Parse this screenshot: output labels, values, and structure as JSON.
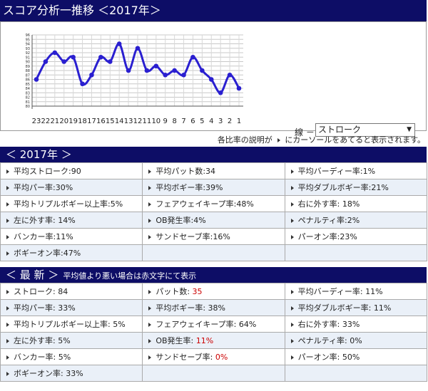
{
  "header": {
    "title": "スコア分析一推移 ＜2017年＞"
  },
  "chart_data": {
    "type": "line",
    "x": [
      "23",
      "22",
      "21",
      "20",
      "19",
      "18",
      "17",
      "16",
      "15",
      "14",
      "13",
      "12",
      "11",
      "10",
      "9",
      "8",
      "7",
      "6",
      "5",
      "4",
      "3",
      "2",
      "1"
    ],
    "values": [
      86,
      90,
      92,
      90,
      91,
      85,
      87,
      91,
      90,
      94,
      88,
      93,
      88,
      89,
      87,
      88,
      87,
      91,
      88,
      86,
      83,
      87,
      84
    ],
    "ylim": [
      80,
      96
    ],
    "y_ticks": [
      "96",
      "95",
      "94",
      "93",
      "92",
      "91",
      "90",
      "89",
      "88",
      "87",
      "86",
      "85",
      "84",
      "83",
      "82",
      "81",
      "80"
    ],
    "color": "#2a1fd0",
    "grid": true
  },
  "controls": {
    "line_label": "線 －",
    "line_select_value": "ストローク"
  },
  "note": {
    "before": "各比率の説明が",
    "after": "にカーソールをあてると表示されます。"
  },
  "section_2017": {
    "title": "＜ 2017年 ＞",
    "rows": [
      [
        {
          "text": "平均ストローク:90"
        },
        {
          "text": "平均パット数:34"
        },
        {
          "text": "平均バーディー率:1%"
        }
      ],
      [
        {
          "text": "平均パー率:30%"
        },
        {
          "text": "平均ボギー率:39%"
        },
        {
          "text": "平均ダブルボギー率:21%"
        }
      ],
      [
        {
          "text": "平均トリプルボギー以上率:5%"
        },
        {
          "text": "フェアウェイキープ率:48%"
        },
        {
          "text": "右に外す率: 18%"
        }
      ],
      [
        {
          "text": "左に外す率: 14%"
        },
        {
          "text": "OB発生率:4%"
        },
        {
          "text": "ペナルティ率:2%"
        }
      ],
      [
        {
          "text": "バンカー率:11%"
        },
        {
          "text": "サンドセーブ率:16%"
        },
        {
          "text": "パーオン率:23%"
        }
      ],
      [
        {
          "text": "ボギーオン率:47%"
        },
        {
          "text": ""
        },
        {
          "text": ""
        }
      ]
    ]
  },
  "section_latest": {
    "title": "＜ 最 新 ＞",
    "subtitle": "平均値より悪い場合は赤文字にて表示",
    "rows": [
      [
        {
          "label": "ストローク:",
          "value": "84",
          "red": false
        },
        {
          "label": "パット数:",
          "value": "35",
          "red": true
        },
        {
          "label": "平均バーディー率:",
          "value": "11%",
          "red": false
        }
      ],
      [
        {
          "label": "平均パー率:",
          "value": "33%",
          "red": false
        },
        {
          "label": "平均ボギー率:",
          "value": "38%",
          "red": false
        },
        {
          "label": "平均ダブルボギー率:",
          "value": "11%",
          "red": false
        }
      ],
      [
        {
          "label": "平均トリプルボギー以上率:",
          "value": "5%",
          "red": false
        },
        {
          "label": "フェアウェイキープ率:",
          "value": "64%",
          "red": false
        },
        {
          "label": "右に外す率:",
          "value": "33%",
          "red": false
        }
      ],
      [
        {
          "label": "左に外す率:",
          "value": "5%",
          "red": false
        },
        {
          "label": "OB発生率:",
          "value": "11%",
          "red": true
        },
        {
          "label": "ペナルティ率:",
          "value": "0%",
          "red": false
        }
      ],
      [
        {
          "label": "バンカー率:",
          "value": "5%",
          "red": false
        },
        {
          "label": "サンドセーブ率:",
          "value": "0%",
          "red": true
        },
        {
          "label": "パーオン率:",
          "value": "50%",
          "red": false
        }
      ],
      [
        {
          "label": "ボギーオン率:",
          "value": "33%",
          "red": false
        },
        {
          "label": "",
          "value": "",
          "red": false
        },
        {
          "label": "",
          "value": "",
          "red": false
        }
      ]
    ]
  }
}
